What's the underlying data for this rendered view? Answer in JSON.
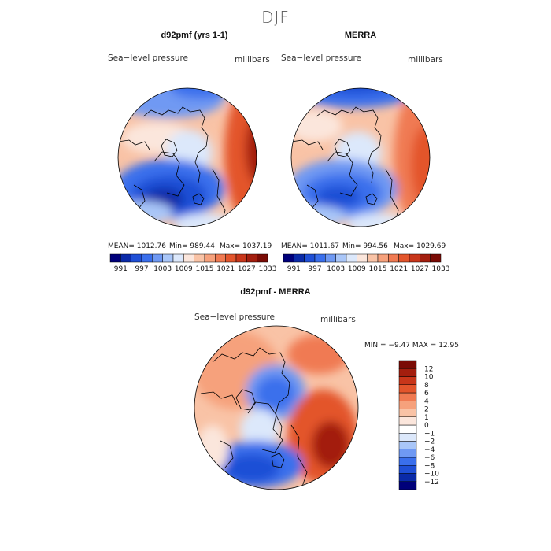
{
  "figure": {
    "title": "DJF"
  },
  "panels": [
    {
      "title": "d92pmf (yrs 1-1)",
      "field": "Sea−level pressure",
      "units": "millibars",
      "stats": {
        "mean": "MEAN= 1012.76",
        "min": "Min= 989.44",
        "max": "Max= 1037.19"
      }
    },
    {
      "title": "MERRA",
      "field": "Sea−level pressure",
      "units": "millibars",
      "stats": {
        "mean": "MEAN= 1011.67",
        "min": "Min= 994.56",
        "max": "Max= 1029.69"
      }
    },
    {
      "title": "d92pmf - MERRA",
      "field": "Sea−level pressure",
      "units": "millibars",
      "stats": {
        "minmax": "MIN =  −9.47 MAX =  12.95"
      }
    }
  ],
  "colorbar_abs": {
    "colors": [
      "#00007a",
      "#0a2aa8",
      "#1f4fd6",
      "#3a6fec",
      "#6f99f3",
      "#a9c6f8",
      "#dce8fb",
      "#fbe6dc",
      "#f9c3a6",
      "#f6a17c",
      "#f07a52",
      "#e3552c",
      "#c8361a",
      "#a31e0e",
      "#7a0b05"
    ],
    "labels": [
      "991",
      "997",
      "1003",
      "1009",
      "1015",
      "1021",
      "1027",
      "1033"
    ]
  },
  "colorbar_diff": {
    "colors": [
      "#00007a",
      "#0a2aa8",
      "#1f4fd6",
      "#3a6fec",
      "#6f99f3",
      "#a9c6f8",
      "#dce8fb",
      "#ffffff",
      "#fbe6dc",
      "#f9c3a6",
      "#f6a17c",
      "#f07a52",
      "#e3552c",
      "#c8361a",
      "#a31e0e",
      "#7a0b05"
    ],
    "labels": [
      "12",
      "10",
      "8",
      "6",
      "4",
      "2",
      "1",
      "0",
      "−1",
      "−2",
      "−4",
      "−6",
      "−8",
      "−10",
      "−12"
    ]
  }
}
